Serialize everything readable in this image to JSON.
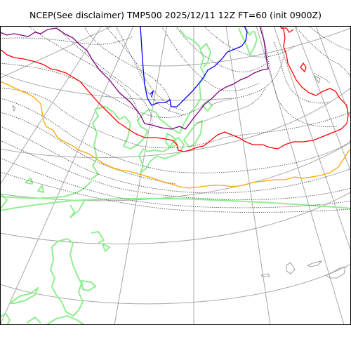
{
  "title": "NCEP(See disclaimer) TMP500 2025/12/11 12Z FT=60 (init 0900Z)",
  "map": {
    "product": "TMP500",
    "colors": {
      "background": "#ffffff",
      "graticule": "#a8a8a8",
      "coastline": "#90ee90",
      "isotherm_minor": "#555555",
      "contour_blue": "#0000ff",
      "contour_purple": "#800080",
      "contour_red": "#ff0000",
      "contour_orange": "#ffa500",
      "frame": "#000000"
    }
  }
}
